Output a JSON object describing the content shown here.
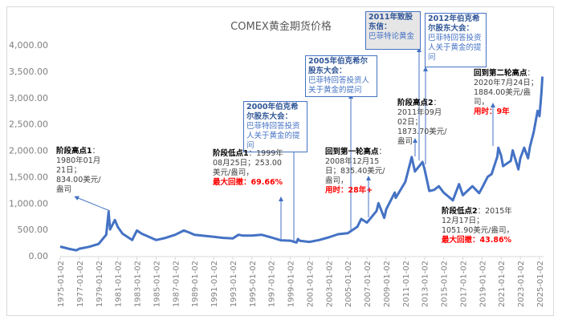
{
  "chart_data": {
    "type": "line",
    "title": "COMEX黄金期货价格",
    "xlabel": "",
    "ylabel": "",
    "ylim": [
      0,
      4000
    ],
    "yticks": [
      "0.00",
      "500.00",
      "1,000.00",
      "1,500.00",
      "2,000.00",
      "2,500.00",
      "3,000.00",
      "3,500.00",
      "4,000.00"
    ],
    "xticks": [
      "1975-01-02",
      "1977-01-02",
      "1979-01-02",
      "1981-01-02",
      "1983-01-02",
      "1985-01-02",
      "1987-01-02",
      "1989-01-02",
      "1991-01-02",
      "1993-01-02",
      "1995-01-02",
      "1997-01-02",
      "1999-01-02",
      "2001-01-02",
      "2003-01-02",
      "2005-01-02",
      "2007-01-02",
      "2009-01-02",
      "2011-01-02",
      "2013-01-02",
      "2015-01-02",
      "2017-01-02",
      "2019-01-02",
      "2021-01-02",
      "2023-01-02",
      "2025-01-02"
    ],
    "series": [
      {
        "name": "COMEX黄金期货价格",
        "color": "#4472c4",
        "x": [
          1975,
          1976,
          1976.7,
          1977,
          1978,
          1979,
          1979.8,
          1980.05,
          1980.2,
          1980.7,
          1981,
          1981.5,
          1982.5,
          1983,
          1983.5,
          1984,
          1985,
          1986,
          1987,
          1987.9,
          1988.5,
          1989,
          1990,
          1991,
          1992,
          1993,
          1993.6,
          1994,
          1995,
          1996,
          1997,
          1998,
          1999,
          1999.65,
          1999.8,
          2000,
          2001,
          2002,
          2003,
          2004,
          2005,
          2006,
          2006.4,
          2007,
          2008,
          2008.2,
          2008.8,
          2008.95,
          2009,
          2009.9,
          2010,
          2011,
          2011.67,
          2012,
          2012.8,
          2013,
          2013.5,
          2014,
          2014.5,
          2015,
          2015.96,
          2016.6,
          2017,
          2018,
          2018.7,
          2019,
          2019.6,
          2020,
          2020.6,
          2020.7,
          2021,
          2021.2,
          2022,
          2022.2,
          2022.8,
          2023,
          2023.4,
          2023.8,
          2024,
          2024.4,
          2024.8,
          2025,
          2025.2,
          2025.3
        ],
        "y": [
          175,
          130,
          105,
          135,
          170,
          225,
          400,
          834,
          500,
          680,
          550,
          420,
          300,
          480,
          420,
          380,
          300,
          340,
          400,
          480,
          440,
          400,
          380,
          360,
          340,
          330,
          400,
          385,
          385,
          400,
          350,
          295,
          287,
          253,
          320,
          285,
          265,
          300,
          350,
          410,
          430,
          550,
          700,
          630,
          850,
          1000,
          720,
          835,
          880,
          1200,
          1100,
          1400,
          1874,
          1600,
          1780,
          1650,
          1230,
          1250,
          1320,
          1200,
          1052,
          1360,
          1150,
          1320,
          1190,
          1290,
          1500,
          1550,
          1884,
          2050,
          1900,
          1700,
          1800,
          2000,
          1640,
          1850,
          2050,
          1850,
          2070,
          2350,
          2750,
          2650,
          3100,
          3400
        ]
      }
    ],
    "annotations": [
      {
        "title": "2000年伯克希尔股东大会：",
        "text": "巴菲特回答投资人关于黄金的提问"
      },
      {
        "title": "2005年伯克希尔股东大会：",
        "text": "巴菲特回答投资人关于黄金的提问"
      },
      {
        "title": "2011年致股东信：",
        "text": "巴菲特论黄金"
      },
      {
        "title": "2012年伯克希尔股东大会：",
        "text": "巴菲特回答投资人关于黄金的提问"
      }
    ],
    "notes": {
      "high1": {
        "label": "阶段高点1",
        "text": "：1980年01月21日；834.00美元/盎司"
      },
      "low1": {
        "label": "阶段低点1",
        "text": "：1999年08月25日；253.00美元/盎司，",
        "red": "最大回撤：69.66%"
      },
      "back1": {
        "label": "回到第一轮高点",
        "text": "：2008年12月15日；835.40美元/盎司，",
        "red": "用时：28年+"
      },
      "high2": {
        "label": "阶段高点2",
        "text": "：2011年09月02日；1873.70美元/盎司"
      },
      "back2": {
        "label": "回到第二轮高点",
        "text": "：2020年7月24日；1884.00美元/盎司，",
        "red": "用时：9年"
      },
      "low2": {
        "label": "阶段低点2",
        "text": "：2015年12月17日；1051.90美元/盎司，",
        "red": "最大回撤：43.86%"
      }
    }
  }
}
